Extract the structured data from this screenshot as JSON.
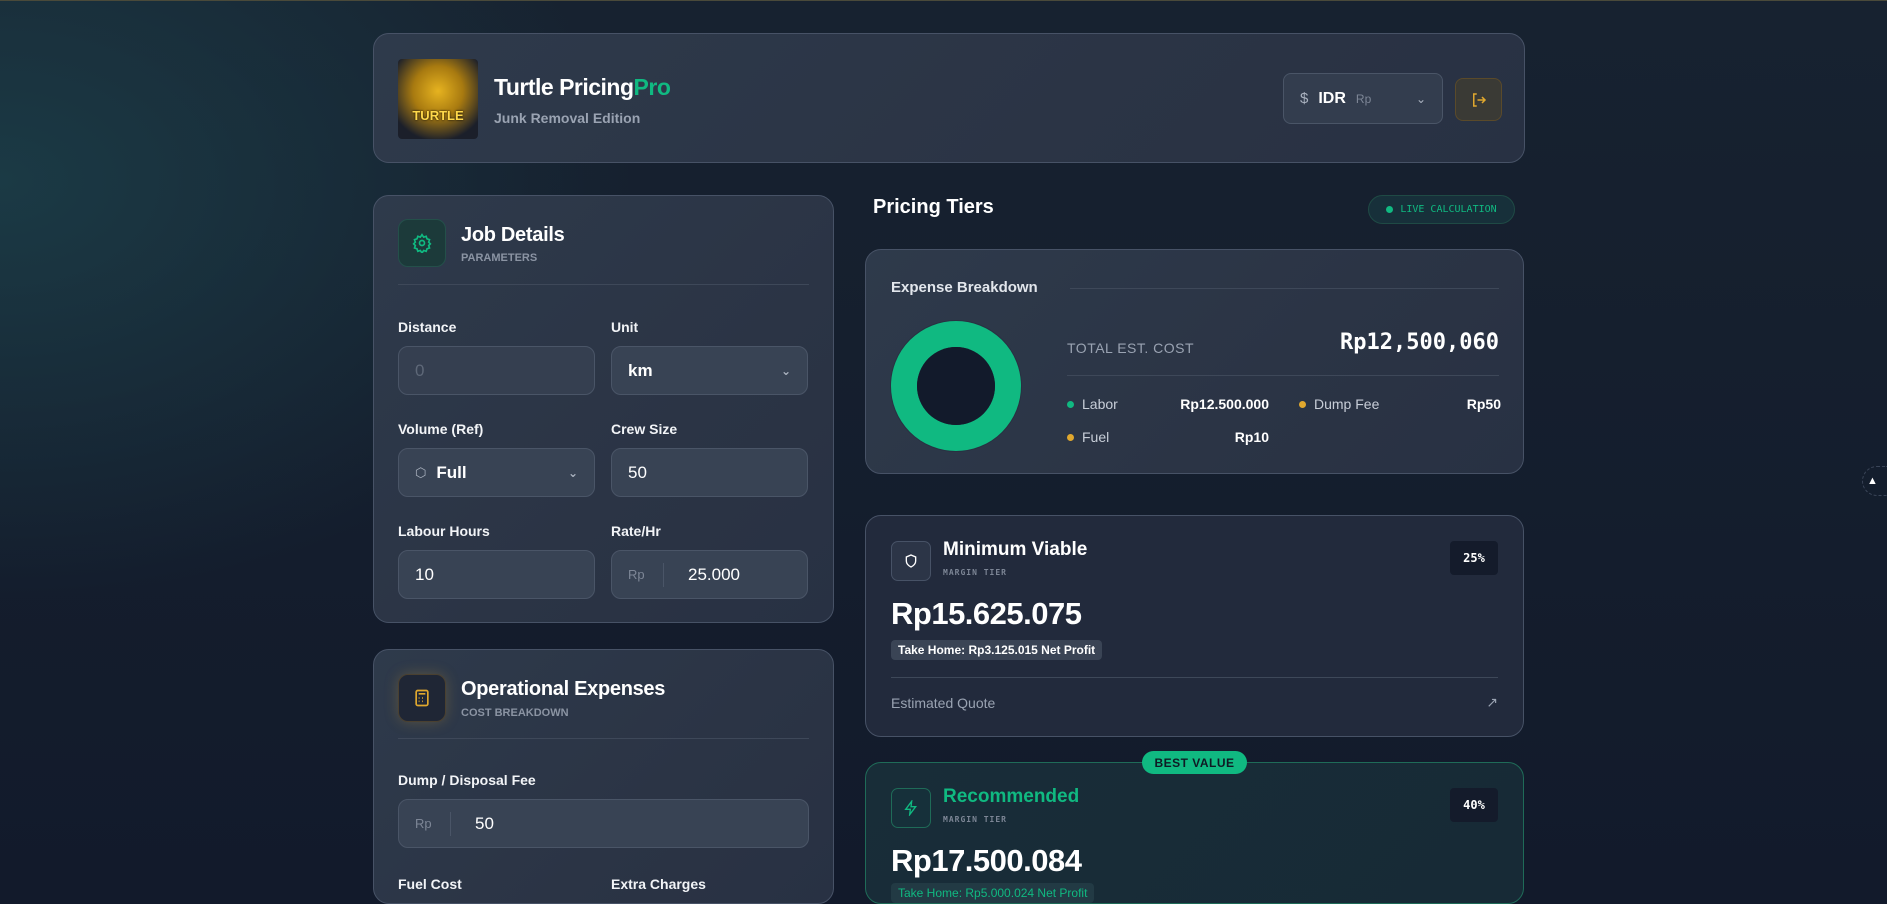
{
  "header": {
    "brand_main": "Turtle Pricing",
    "brand_accent": "Pro",
    "subtitle": "Junk Removal Edition",
    "logo_text": "TURTLE",
    "currency": {
      "symbol_icon": "dollar-icon",
      "code": "IDR",
      "symbol": "Rp"
    },
    "logout_icon": "logout-icon"
  },
  "job": {
    "title": "Job Details",
    "subtitle": "PARAMETERS",
    "icon": "gear-icon",
    "distance": {
      "label": "Distance",
      "placeholder": "0",
      "value": ""
    },
    "unit": {
      "label": "Unit",
      "value": "km"
    },
    "volume": {
      "label": "Volume (Ref)",
      "value": "Full",
      "icon": "box-icon"
    },
    "crew": {
      "label": "Crew Size",
      "value": "50"
    },
    "hours": {
      "label": "Labour Hours",
      "value": "10"
    },
    "rate": {
      "label": "Rate/Hr",
      "prefix": "Rp",
      "value": "25.000"
    }
  },
  "ops": {
    "title": "Operational Expenses",
    "subtitle": "COST BREAKDOWN",
    "icon": "calculator-icon",
    "dump": {
      "label": "Dump / Disposal Fee",
      "prefix": "Rp",
      "value": "50"
    },
    "fuel": {
      "label": "Fuel Cost"
    },
    "extra": {
      "label": "Extra Charges"
    }
  },
  "pricing": {
    "title": "Pricing Tiers",
    "live": "LIVE CALCULATION"
  },
  "expense": {
    "title": "Expense Breakdown",
    "total_label": "TOTAL EST. COST",
    "total": "Rp12,500,060",
    "items": [
      {
        "name": "Labor",
        "value": "Rp12.500.000",
        "amount": 12500000,
        "color": "#10b981"
      },
      {
        "name": "Dump Fee",
        "value": "Rp50",
        "amount": 50,
        "color": "#e0a82e"
      },
      {
        "name": "Fuel",
        "value": "Rp10",
        "amount": 10,
        "color": "#e0a82e"
      }
    ]
  },
  "tiers": [
    {
      "name": "Minimum Viable",
      "sub": "MARGIN TIER",
      "pct": "25%",
      "price": "Rp15.625.075",
      "take_home": "Take Home: Rp3.125.015 Net Profit",
      "footer": "Estimated Quote",
      "icon": "shield-icon"
    },
    {
      "name": "Recommended",
      "sub": "MARGIN TIER",
      "pct": "40%",
      "price": "Rp17.500.084",
      "take_home": "Take Home: Rp5.000.024 Net Profit",
      "badge": "BEST VALUE",
      "icon": "lightning-icon",
      "accent": "#10b981"
    }
  ]
}
